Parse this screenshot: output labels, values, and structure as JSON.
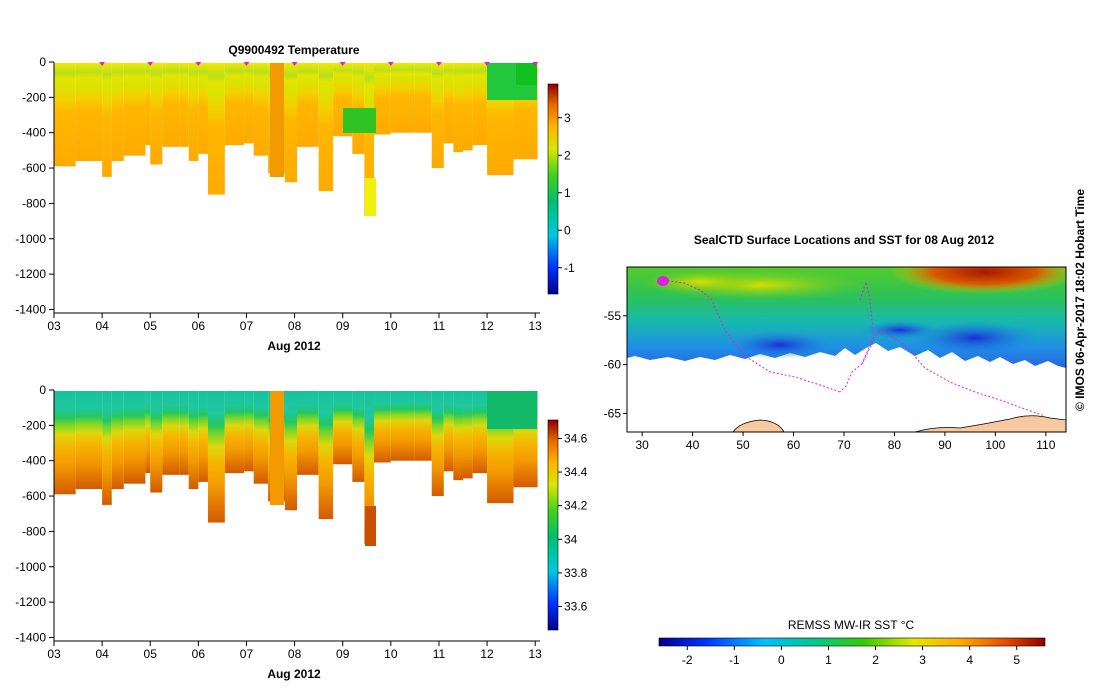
{
  "chart_data": [
    {
      "type": "heatmap",
      "name": "temperature-section",
      "title": "Q9900492  Temperature",
      "xlabel": "Aug 2012",
      "ylabel": "",
      "x_ticks": [
        "03",
        "04",
        "05",
        "06",
        "07",
        "08",
        "09",
        "10",
        "11",
        "12",
        "13"
      ],
      "x_range": [
        3.0,
        13.1
      ],
      "y_ticks": [
        0,
        -200,
        -400,
        -600,
        -800,
        -1000,
        -1200,
        -1400
      ],
      "y_range": [
        -1420,
        0
      ],
      "profile_markers": [
        4,
        5,
        6,
        7,
        8,
        9,
        10,
        11,
        12,
        13
      ],
      "colorbar": {
        "ticks": [
          3,
          2,
          1,
          0,
          -1
        ],
        "range": [
          -1.7,
          3.9
        ]
      },
      "profiles": [
        {
          "x0": 3.0,
          "x1": 3.45,
          "bottom": -590
        },
        {
          "x0": 3.45,
          "x1": 4.0,
          "bottom": -560
        },
        {
          "x0": 4.0,
          "x1": 4.2,
          "bottom": -650
        },
        {
          "x0": 4.2,
          "x1": 4.45,
          "bottom": -560
        },
        {
          "x0": 4.45,
          "x1": 4.9,
          "bottom": -530
        },
        {
          "x0": 4.9,
          "x1": 5.0,
          "bottom": -470
        },
        {
          "x0": 5.0,
          "x1": 5.25,
          "bottom": -580
        },
        {
          "x0": 5.25,
          "x1": 5.6,
          "bottom": -480
        },
        {
          "x0": 5.6,
          "x1": 5.8,
          "bottom": -480
        },
        {
          "x0": 5.8,
          "x1": 6.0,
          "bottom": -560
        },
        {
          "x0": 6.0,
          "x1": 6.2,
          "bottom": -520
        },
        {
          "x0": 6.2,
          "x1": 6.55,
          "bottom": -750
        },
        {
          "x0": 6.55,
          "x1": 6.95,
          "bottom": -470
        },
        {
          "x0": 6.95,
          "x1": 7.15,
          "bottom": -460
        },
        {
          "x0": 7.15,
          "x1": 7.45,
          "bottom": -530
        },
        {
          "x0": 7.45,
          "x1": 7.6,
          "bottom": -630
        },
        {
          "x0": 7.6,
          "x1": 7.8,
          "bottom": -630
        },
        {
          "x0": 7.8,
          "x1": 8.05,
          "bottom": -680
        },
        {
          "x0": 8.05,
          "x1": 8.5,
          "bottom": -480
        },
        {
          "x0": 8.5,
          "x1": 8.8,
          "bottom": -730
        },
        {
          "x0": 8.8,
          "x1": 9.2,
          "bottom": -420
        },
        {
          "x0": 9.2,
          "x1": 9.45,
          "bottom": -520
        },
        {
          "x0": 9.45,
          "x1": 9.65,
          "bottom": -870
        },
        {
          "x0": 9.65,
          "x1": 10.0,
          "bottom": -410
        },
        {
          "x0": 10.0,
          "x1": 10.5,
          "bottom": -400
        },
        {
          "x0": 10.5,
          "x1": 10.85,
          "bottom": -400
        },
        {
          "x0": 10.85,
          "x1": 11.1,
          "bottom": -600
        },
        {
          "x0": 11.1,
          "x1": 11.3,
          "bottom": -460
        },
        {
          "x0": 11.3,
          "x1": 11.5,
          "bottom": -510
        },
        {
          "x0": 11.5,
          "x1": 11.7,
          "bottom": -500
        },
        {
          "x0": 11.7,
          "x1": 12.0,
          "bottom": -470
        },
        {
          "x0": 12.0,
          "x1": 12.55,
          "bottom": -640
        },
        {
          "x0": 12.55,
          "x1": 13.05,
          "bottom": -550
        }
      ]
    },
    {
      "type": "heatmap",
      "name": "salinity-section",
      "title": "",
      "xlabel": "Aug 2012",
      "ylabel": "",
      "x_ticks": [
        "03",
        "04",
        "05",
        "06",
        "07",
        "08",
        "09",
        "10",
        "11",
        "12",
        "13"
      ],
      "x_range": [
        3.0,
        13.1
      ],
      "y_ticks": [
        0,
        -200,
        -400,
        -600,
        -800,
        -1000,
        -1200,
        -1400
      ],
      "y_range": [
        -1420,
        0
      ],
      "colorbar": {
        "ticks": [
          "34.6",
          "34.4",
          "34.2",
          "34",
          "33.8",
          "33.6"
        ],
        "range": [
          33.46,
          34.71
        ]
      }
    },
    {
      "type": "heatmap",
      "name": "sst-map",
      "title": "SealCTD Surface Locations and SST for 08 Aug 2012",
      "x_ticks": [
        30,
        40,
        50,
        60,
        70,
        80,
        90,
        100,
        110
      ],
      "x_range": [
        27,
        114
      ],
      "y_ticks": [
        -55,
        -60,
        -65
      ],
      "y_range": [
        -66.9,
        -50.0
      ],
      "colorbar": {
        "label": "REMSS MW-IR SST °C",
        "ticks": [
          -2,
          -1,
          0,
          1,
          2,
          3,
          4,
          5
        ],
        "range": [
          -2.6,
          5.6
        ]
      }
    }
  ],
  "footer": {
    "credit": "©  IMOS 06-Apr-2017 18:02 Hobart Time"
  }
}
